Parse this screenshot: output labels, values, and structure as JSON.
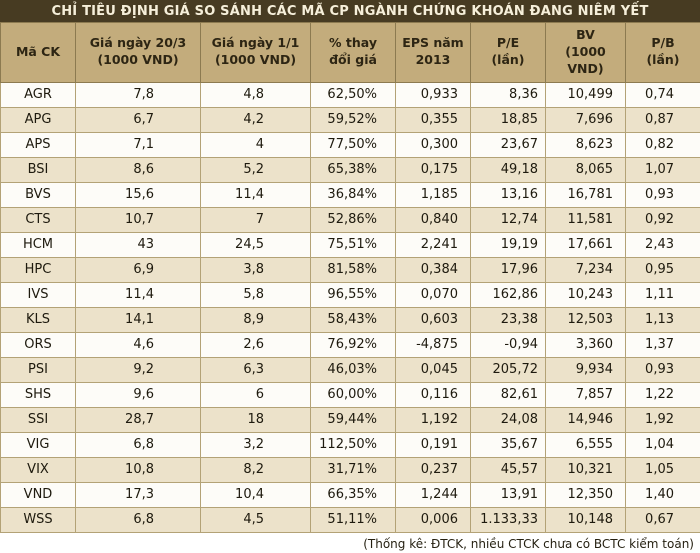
{
  "title": "CHỈ TIÊU ĐỊNH GIÁ SO SÁNH CÁC MÃ CP NGÀNH CHỨNG KHOÁN ĐANG NIÊM YẾT",
  "footer_note": "(Thống kê: ĐTCK, nhiều CTCK chưa có BCTC kiểm toán)",
  "colors": {
    "title_bar_bg": "#473b22",
    "title_text": "#f6efda",
    "header_bg": "#c3ac7c",
    "row_alt_bg": "#ece2ca",
    "border": "#b3a276",
    "bottom_bar_bg": "#473b22"
  },
  "chart_data": {
    "type": "table",
    "title": "CHỈ TIÊU ĐỊNH GIÁ SO SÁNH CÁC MÃ CP NGÀNH CHỨNG KHOÁN ĐANG NIÊM YẾT",
    "note": "(Thống kê: ĐTCK, nhiều CTCK chưa có BCTC kiểm toán)",
    "columns": [
      "Mã CK",
      "Giá ngày 20/3\n(1000 VND)",
      "Giá ngày 1/1\n(1000 VND)",
      "% thay\nđổi giá",
      "EPS năm\n2013",
      "P/E\n(lần)",
      "BV\n(1000 VND)",
      "P/B\n(lần)"
    ],
    "rows": [
      [
        "AGR",
        "7,8",
        "4,8",
        "62,50%",
        "0,933",
        "8,36",
        "10,499",
        "0,74"
      ],
      [
        "APG",
        "6,7",
        "4,2",
        "59,52%",
        "0,355",
        "18,85",
        "7,696",
        "0,87"
      ],
      [
        "APS",
        "7,1",
        "4",
        "77,50%",
        "0,300",
        "23,67",
        "8,623",
        "0,82"
      ],
      [
        "BSI",
        "8,6",
        "5,2",
        "65,38%",
        "0,175",
        "49,18",
        "8,065",
        "1,07"
      ],
      [
        "BVS",
        "15,6",
        "11,4",
        "36,84%",
        "1,185",
        "13,16",
        "16,781",
        "0,93"
      ],
      [
        "CTS",
        "10,7",
        "7",
        "52,86%",
        "0,840",
        "12,74",
        "11,581",
        "0,92"
      ],
      [
        "HCM",
        "43",
        "24,5",
        "75,51%",
        "2,241",
        "19,19",
        "17,661",
        "2,43"
      ],
      [
        "HPC",
        "6,9",
        "3,8",
        "81,58%",
        "0,384",
        "17,96",
        "7,234",
        "0,95"
      ],
      [
        "IVS",
        "11,4",
        "5,8",
        "96,55%",
        "0,070",
        "162,86",
        "10,243",
        "1,11"
      ],
      [
        "KLS",
        "14,1",
        "8,9",
        "58,43%",
        "0,603",
        "23,38",
        "12,503",
        "1,13"
      ],
      [
        "ORS",
        "4,6",
        "2,6",
        "76,92%",
        "-4,875",
        "-0,94",
        "3,360",
        "1,37"
      ],
      [
        "PSI",
        "9,2",
        "6,3",
        "46,03%",
        "0,045",
        "205,72",
        "9,934",
        "0,93"
      ],
      [
        "SHS",
        "9,6",
        "6",
        "60,00%",
        "0,116",
        "82,61",
        "7,857",
        "1,22"
      ],
      [
        "SSI",
        "28,7",
        "18",
        "59,44%",
        "1,192",
        "24,08",
        "14,946",
        "1,92"
      ],
      [
        "VIG",
        "6,8",
        "3,2",
        "112,50%",
        "0,191",
        "35,67",
        "6,555",
        "1,04"
      ],
      [
        "VIX",
        "10,8",
        "8,2",
        "31,71%",
        "0,237",
        "45,57",
        "10,321",
        "1,05"
      ],
      [
        "VND",
        "17,3",
        "10,4",
        "66,35%",
        "1,244",
        "13,91",
        "12,350",
        "1,40"
      ],
      [
        "WSS",
        "6,8",
        "4,5",
        "51,11%",
        "0,006",
        "1.133,33",
        "10,148",
        "0,67"
      ]
    ]
  }
}
